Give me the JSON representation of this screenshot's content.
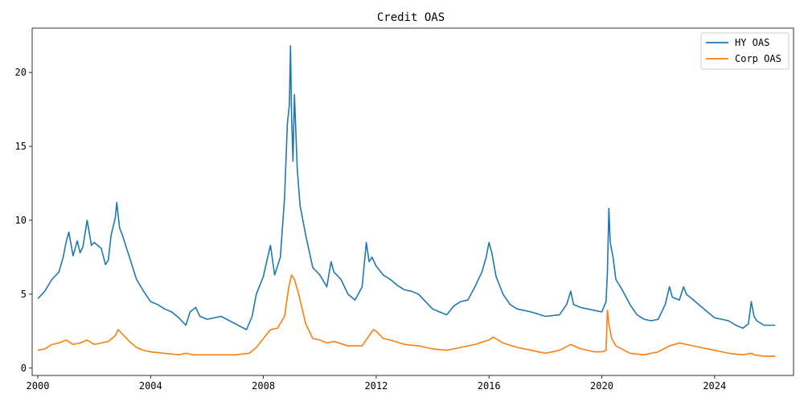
{
  "chart_data": {
    "type": "line",
    "title": "Credit OAS",
    "xlabel": "",
    "ylabel": "",
    "x_unit": "year",
    "xlim": [
      1999.8,
      2026.8
    ],
    "ylim": [
      -0.5,
      23.0
    ],
    "x_ticks": [
      2000,
      2004,
      2008,
      2012,
      2016,
      2020,
      2024
    ],
    "y_ticks": [
      0,
      5,
      10,
      15,
      20
    ],
    "legend_position": "top-right",
    "grid": false,
    "series": [
      {
        "name": "HY OAS",
        "color": "#1f77b4",
        "x": [
          2000.0,
          2000.25,
          2000.5,
          2000.75,
          2000.9,
          2001.0,
          2001.1,
          2001.25,
          2001.4,
          2001.5,
          2001.6,
          2001.75,
          2001.9,
          2002.0,
          2002.25,
          2002.4,
          2002.5,
          2002.6,
          2002.75,
          2002.8,
          2002.9,
          2003.0,
          2003.25,
          2003.5,
          2003.75,
          2004.0,
          2004.25,
          2004.5,
          2004.75,
          2005.0,
          2005.25,
          2005.4,
          2005.6,
          2005.75,
          2006.0,
          2006.5,
          2007.0,
          2007.4,
          2007.6,
          2007.75,
          2008.0,
          2008.15,
          2008.25,
          2008.4,
          2008.6,
          2008.75,
          2008.85,
          2008.92,
          2008.96,
          2009.0,
          2009.05,
          2009.1,
          2009.2,
          2009.3,
          2009.5,
          2009.75,
          2010.0,
          2010.25,
          2010.4,
          2010.5,
          2010.75,
          2011.0,
          2011.25,
          2011.5,
          2011.65,
          2011.75,
          2011.85,
          2012.0,
          2012.25,
          2012.5,
          2012.75,
          2013.0,
          2013.25,
          2013.5,
          2013.75,
          2014.0,
          2014.25,
          2014.5,
          2014.75,
          2015.0,
          2015.25,
          2015.5,
          2015.75,
          2015.9,
          2016.0,
          2016.1,
          2016.25,
          2016.5,
          2016.75,
          2017.0,
          2017.5,
          2018.0,
          2018.5,
          2018.75,
          2018.9,
          2019.0,
          2019.25,
          2019.5,
          2019.75,
          2020.0,
          2020.15,
          2020.2,
          2020.25,
          2020.3,
          2020.4,
          2020.5,
          2020.75,
          2021.0,
          2021.25,
          2021.5,
          2021.75,
          2022.0,
          2022.25,
          2022.4,
          2022.5,
          2022.75,
          2022.9,
          2023.0,
          2023.25,
          2023.5,
          2023.75,
          2024.0,
          2024.25,
          2024.5,
          2024.75,
          2025.0,
          2025.2,
          2025.3,
          2025.4,
          2025.5,
          2025.75,
          2026.0,
          2026.15
        ],
        "values": [
          4.7,
          5.2,
          6.0,
          6.5,
          7.5,
          8.5,
          9.2,
          7.6,
          8.6,
          7.8,
          8.2,
          10.0,
          8.3,
          8.5,
          8.1,
          7.0,
          7.3,
          9.0,
          10.2,
          11.2,
          9.5,
          9.0,
          7.5,
          6.0,
          5.2,
          4.5,
          4.3,
          4.0,
          3.8,
          3.4,
          2.9,
          3.8,
          4.1,
          3.5,
          3.3,
          3.5,
          3.0,
          2.6,
          3.5,
          5.0,
          6.2,
          7.5,
          8.3,
          6.3,
          7.5,
          11.5,
          16.5,
          17.8,
          21.8,
          17.0,
          14.0,
          18.5,
          13.5,
          11.0,
          9.0,
          6.8,
          6.3,
          5.5,
          7.2,
          6.5,
          6.0,
          5.0,
          4.6,
          5.5,
          8.5,
          7.2,
          7.5,
          6.9,
          6.3,
          6.0,
          5.6,
          5.3,
          5.2,
          5.0,
          4.5,
          4.0,
          3.8,
          3.6,
          4.2,
          4.5,
          4.6,
          5.5,
          6.5,
          7.5,
          8.5,
          7.8,
          6.2,
          5.0,
          4.3,
          4.0,
          3.8,
          3.5,
          3.6,
          4.3,
          5.2,
          4.3,
          4.1,
          4.0,
          3.9,
          3.8,
          4.5,
          6.5,
          10.8,
          8.5,
          7.5,
          6.0,
          5.2,
          4.3,
          3.6,
          3.3,
          3.2,
          3.3,
          4.3,
          5.5,
          4.8,
          4.6,
          5.5,
          5.0,
          4.6,
          4.2,
          3.8,
          3.4,
          3.3,
          3.2,
          2.9,
          2.7,
          3.0,
          4.5,
          3.5,
          3.2,
          2.9,
          2.9,
          2.9
        ]
      },
      {
        "name": "Corp OAS",
        "color": "#ff7f0e",
        "x": [
          2000.0,
          2000.25,
          2000.5,
          2000.75,
          2001.0,
          2001.25,
          2001.5,
          2001.75,
          2002.0,
          2002.25,
          2002.5,
          2002.75,
          2002.85,
          2003.0,
          2003.25,
          2003.5,
          2003.75,
          2004.0,
          2004.5,
          2005.0,
          2005.25,
          2005.5,
          2006.0,
          2006.5,
          2007.0,
          2007.5,
          2007.75,
          2008.0,
          2008.25,
          2008.5,
          2008.75,
          2008.9,
          2009.0,
          2009.1,
          2009.25,
          2009.5,
          2009.75,
          2010.0,
          2010.25,
          2010.5,
          2011.0,
          2011.5,
          2011.75,
          2011.9,
          2012.0,
          2012.25,
          2012.5,
          2013.0,
          2013.5,
          2014.0,
          2014.5,
          2015.0,
          2015.5,
          2016.0,
          2016.15,
          2016.5,
          2017.0,
          2017.5,
          2018.0,
          2018.5,
          2018.9,
          2019.25,
          2019.75,
          2020.0,
          2020.15,
          2020.2,
          2020.25,
          2020.35,
          2020.5,
          2021.0,
          2021.5,
          2022.0,
          2022.4,
          2022.75,
          2023.0,
          2023.5,
          2024.0,
          2024.5,
          2025.0,
          2025.3,
          2025.4,
          2025.75,
          2026.15
        ],
        "values": [
          1.2,
          1.3,
          1.6,
          1.7,
          1.9,
          1.6,
          1.7,
          1.9,
          1.6,
          1.7,
          1.8,
          2.2,
          2.6,
          2.3,
          1.8,
          1.4,
          1.2,
          1.1,
          1.0,
          0.9,
          1.0,
          0.9,
          0.9,
          0.9,
          0.9,
          1.0,
          1.4,
          2.0,
          2.6,
          2.7,
          3.5,
          5.5,
          6.3,
          6.0,
          5.0,
          3.0,
          2.0,
          1.9,
          1.7,
          1.8,
          1.5,
          1.5,
          2.2,
          2.6,
          2.5,
          2.0,
          1.9,
          1.6,
          1.5,
          1.3,
          1.2,
          1.4,
          1.6,
          1.9,
          2.1,
          1.7,
          1.4,
          1.2,
          1.0,
          1.2,
          1.6,
          1.3,
          1.1,
          1.1,
          1.2,
          3.9,
          3.0,
          2.0,
          1.5,
          1.0,
          0.9,
          1.1,
          1.5,
          1.7,
          1.6,
          1.4,
          1.2,
          1.0,
          0.9,
          1.0,
          0.9,
          0.8,
          0.8
        ]
      }
    ]
  }
}
